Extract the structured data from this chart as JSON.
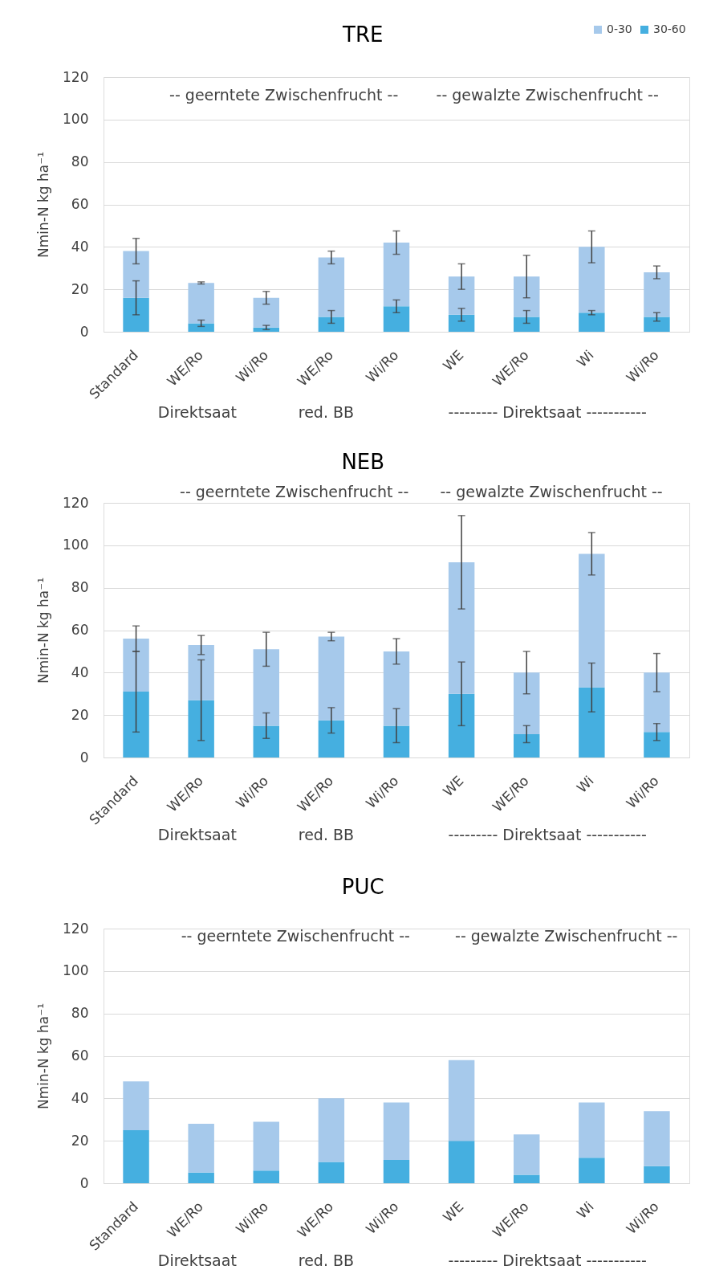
{
  "chart_data": [
    {
      "type": "bar",
      "title": "TRE",
      "ylabel": "Nmin-N kg ha⁻¹",
      "categories": [
        "Standard",
        "WE/Ro",
        "Wi/Ro",
        "WE/Ro",
        "Wi/Ro",
        "WE",
        "WE/Ro",
        "Wi",
        "Wi/Ro"
      ],
      "stacked": true,
      "series": [
        {
          "name": "30-60",
          "color": "#45afe0",
          "values": [
            16,
            4,
            2,
            7,
            12,
            8,
            7,
            9,
            7
          ],
          "errors": [
            8,
            1.5,
            1,
            3,
            3,
            3,
            3,
            1,
            2
          ]
        },
        {
          "name": "0-30",
          "color": "#a6c9eb",
          "values": [
            22,
            19,
            14,
            28,
            30,
            18,
            19,
            31,
            21
          ],
          "errors": [
            6,
            0.5,
            3,
            3,
            5.5,
            6,
            10,
            7.5,
            3
          ]
        }
      ],
      "ylim": [
        0,
        120
      ],
      "yticks": [
        0,
        20,
        40,
        60,
        80,
        100,
        120
      ],
      "grid": "y",
      "legend": "top right",
      "annotations": [
        "-- geerntete Zwischenfrucht --",
        "-- gewalzte Zwischenfrucht --",
        "Direktsaat",
        "red. BB",
        "--------- Direktsaat -----------"
      ]
    },
    {
      "type": "bar",
      "title": "NEB",
      "ylabel": "Nmin-N kg ha⁻¹",
      "categories": [
        "Standard",
        "WE/Ro",
        "Wi/Ro",
        "WE/Ro",
        "Wi/Ro",
        "WE",
        "WE/Ro",
        "Wi",
        "Wi/Ro"
      ],
      "stacked": true,
      "series": [
        {
          "color": "#45afe0",
          "values": [
            31,
            27,
            15,
            17.5,
            15,
            30,
            11,
            33,
            12
          ],
          "errors": [
            19,
            19,
            6,
            6,
            8,
            15,
            4,
            11.5,
            4
          ]
        },
        {
          "color": "#a6c9eb",
          "values": [
            25,
            26,
            36,
            39.5,
            35,
            62,
            29,
            63,
            28
          ],
          "errors": [
            6,
            4.5,
            8,
            2,
            6,
            22,
            10,
            10,
            9
          ]
        }
      ],
      "ylim": [
        0,
        120
      ],
      "yticks": [
        0,
        20,
        40,
        60,
        80,
        100,
        120
      ],
      "grid": "y",
      "annotations": [
        "-- geerntete Zwischenfrucht --",
        "-- gewalzte Zwischenfrucht --",
        "Direktsaat",
        "red. BB",
        "--------- Direktsaat -----------"
      ]
    },
    {
      "type": "bar",
      "title": "PUC",
      "ylabel": "Nmin-N kg ha⁻¹",
      "categories": [
        "Standard",
        "WE/Ro",
        "Wi/Ro",
        "WE/Ro",
        "Wi/Ro",
        "WE",
        "WE/Ro",
        "Wi",
        "Wi/Ro"
      ],
      "stacked": true,
      "series": [
        {
          "color": "#45afe0",
          "values": [
            25,
            5,
            6,
            10,
            11,
            20,
            4,
            12,
            8
          ]
        },
        {
          "color": "#a6c9eb",
          "values": [
            23,
            23,
            23,
            30,
            27,
            38,
            19,
            26,
            26
          ]
        }
      ],
      "ylim": [
        0,
        120
      ],
      "yticks": [
        0,
        20,
        40,
        60,
        80,
        100,
        120
      ],
      "grid": "y",
      "annotations": [
        "-- geerntete Zwischenfrucht --",
        "-- gewalzte Zwischenfrucht --",
        "Direktsaat",
        "red. BB",
        "--------- Direktsaat -----------"
      ]
    }
  ]
}
